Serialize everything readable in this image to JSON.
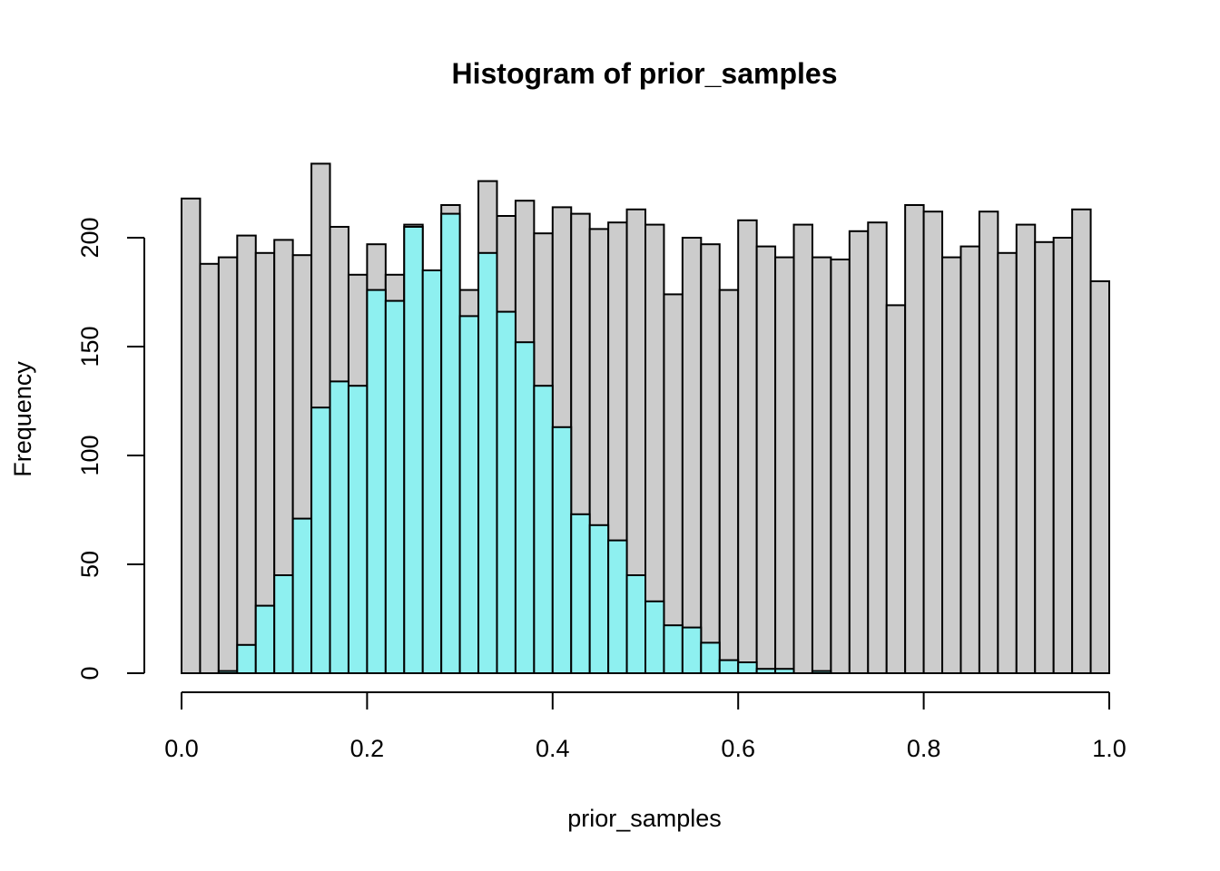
{
  "chart_data": {
    "type": "bar",
    "title": "Histogram of prior_samples",
    "xlabel": "prior_samples",
    "ylabel": "Frequency",
    "xlim": [
      0,
      1
    ],
    "ylim": [
      0,
      234
    ],
    "bin_width": 0.02,
    "x_ticks": [
      "0.0",
      "0.2",
      "0.4",
      "0.6",
      "0.8",
      "1.0"
    ],
    "x_tick_values": [
      0,
      0.2,
      0.4,
      0.6,
      0.8,
      1.0
    ],
    "y_ticks": [
      "0",
      "50",
      "100",
      "150",
      "200"
    ],
    "y_tick_values": [
      0,
      50,
      100,
      150,
      200
    ],
    "series": [
      {
        "color": "#cccccc",
        "values": [
          218,
          188,
          191,
          201,
          193,
          199,
          192,
          234,
          205,
          183,
          197,
          183,
          206,
          185,
          215,
          176,
          226,
          210,
          217,
          202,
          214,
          211,
          204,
          207,
          213,
          206,
          174,
          200,
          197,
          176,
          208,
          196,
          191,
          206,
          191,
          190,
          203,
          207,
          169,
          215,
          212,
          191,
          196,
          212,
          193,
          206,
          198,
          200,
          213,
          180
        ]
      },
      {
        "color": "#8ef0f0",
        "values": [
          0,
          0,
          1,
          13,
          31,
          45,
          71,
          122,
          134,
          132,
          176,
          171,
          205,
          185,
          211,
          164,
          193,
          166,
          152,
          132,
          113,
          73,
          68,
          61,
          45,
          33,
          22,
          21,
          14,
          6,
          5,
          2,
          2,
          0,
          1,
          0,
          0,
          0,
          0,
          0,
          0,
          0,
          0,
          0,
          0,
          0,
          0,
          0,
          0,
          0
        ]
      }
    ]
  }
}
